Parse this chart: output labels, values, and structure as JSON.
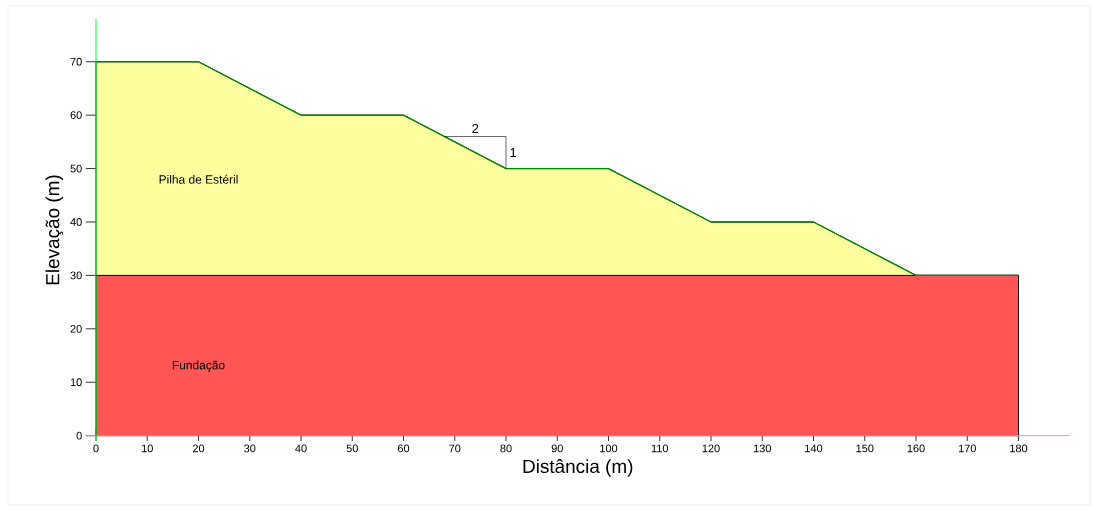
{
  "chart_data": {
    "type": "area",
    "stacked": true,
    "xlabel": "Distância (m)",
    "ylabel": "Elevação (m)",
    "x": [
      0,
      20,
      40,
      60,
      80,
      100,
      120,
      140,
      160,
      180
    ],
    "series": [
      {
        "name": "Fundação",
        "color": "#ff5555",
        "values": [
          30,
          30,
          30,
          30,
          30,
          30,
          30,
          30,
          30,
          30
        ]
      },
      {
        "name": "Pilha de Estéril",
        "color": "#ffffa0",
        "values": [
          40,
          40,
          30,
          30,
          20,
          20,
          10,
          10,
          0,
          0
        ]
      }
    ],
    "xlim": [
      -2,
      190
    ],
    "ylim": [
      -1,
      78
    ],
    "xticks": [
      0,
      10,
      20,
      30,
      40,
      50,
      60,
      70,
      80,
      90,
      100,
      110,
      120,
      130,
      140,
      150,
      160,
      170,
      180
    ],
    "yticks": [
      0,
      10,
      20,
      30,
      40,
      50,
      60,
      70
    ],
    "annotations": [
      "2",
      {
        "text": "1",
        "x": 80,
        "y": 50
      }
    ]
  }
}
